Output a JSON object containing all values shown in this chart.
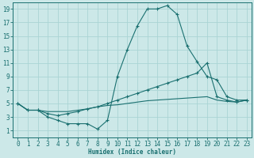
{
  "xlabel": "Humidex (Indice chaleur)",
  "xlim": [
    -0.5,
    23.5
  ],
  "ylim": [
    0,
    20
  ],
  "xticks": [
    0,
    1,
    2,
    3,
    4,
    5,
    6,
    7,
    8,
    9,
    10,
    11,
    12,
    13,
    14,
    15,
    16,
    17,
    18,
    19,
    20,
    21,
    22,
    23
  ],
  "yticks": [
    1,
    3,
    5,
    7,
    9,
    11,
    13,
    15,
    17,
    19
  ],
  "bg_color": "#cce8e8",
  "line_color": "#1a7070",
  "grid_color": "#aad4d4",
  "line1_x": [
    0,
    1,
    2,
    3,
    4,
    5,
    6,
    7,
    8,
    9,
    10,
    11,
    12,
    13,
    14,
    15,
    16,
    17,
    18,
    19,
    20,
    21,
    22,
    23
  ],
  "line1_y": [
    5.0,
    4.0,
    4.0,
    3.0,
    2.5,
    2.0,
    2.0,
    2.0,
    1.2,
    2.5,
    9.0,
    13.0,
    16.5,
    19.0,
    19.0,
    19.5,
    18.2,
    13.5,
    11.2,
    9.0,
    8.5,
    6.0,
    5.5,
    5.5
  ],
  "line2_x": [
    0,
    1,
    2,
    3,
    4,
    5,
    6,
    7,
    8,
    9,
    10,
    11,
    12,
    13,
    14,
    15,
    16,
    17,
    18,
    19,
    20,
    21,
    22,
    23
  ],
  "line2_y": [
    5.0,
    4.0,
    4.0,
    3.5,
    3.2,
    3.5,
    3.8,
    4.2,
    4.5,
    5.0,
    5.5,
    6.0,
    6.5,
    7.0,
    7.5,
    8.0,
    8.5,
    9.0,
    9.5,
    11.0,
    6.0,
    5.5,
    5.2,
    5.5
  ],
  "line3_x": [
    0,
    1,
    2,
    3,
    4,
    5,
    6,
    7,
    8,
    9,
    10,
    11,
    12,
    13,
    14,
    15,
    16,
    17,
    18,
    19,
    20,
    21,
    22,
    23
  ],
  "line3_y": [
    5.0,
    4.0,
    4.0,
    3.8,
    3.8,
    3.8,
    4.0,
    4.2,
    4.5,
    4.7,
    4.8,
    5.0,
    5.2,
    5.4,
    5.5,
    5.6,
    5.7,
    5.8,
    5.9,
    6.0,
    5.5,
    5.3,
    5.2,
    5.5
  ]
}
